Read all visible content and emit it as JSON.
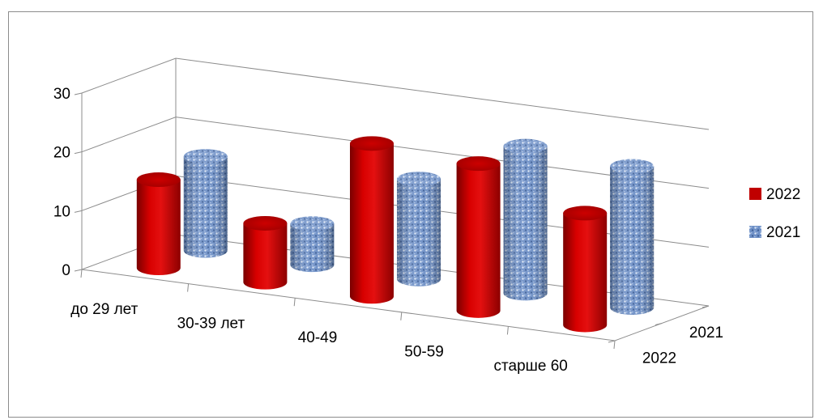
{
  "chart_data": {
    "type": "bar",
    "subtype": "3d-cylinder",
    "title": "",
    "xlabel": "",
    "ylabel": "",
    "categories": [
      "до 29 лет",
      "30-39 лет",
      "40-49",
      "50-59",
      "старше 60"
    ],
    "depth_labels": [
      "2021",
      "2022"
    ],
    "series": [
      {
        "name": "2022",
        "values": [
          15,
          10,
          26,
          25,
          19
        ],
        "color": "#c00000",
        "fill": "solid"
      },
      {
        "name": "2021",
        "values": [
          16,
          7,
          17,
          25,
          24
        ],
        "color": "#5b7bb4",
        "fill": "textured"
      }
    ],
    "ylim": [
      0,
      30
    ],
    "y_ticks": [
      "0",
      "10",
      "20",
      "30"
    ],
    "grid": true,
    "legend": {
      "position": "right",
      "items": [
        "2022",
        "2021"
      ]
    }
  }
}
